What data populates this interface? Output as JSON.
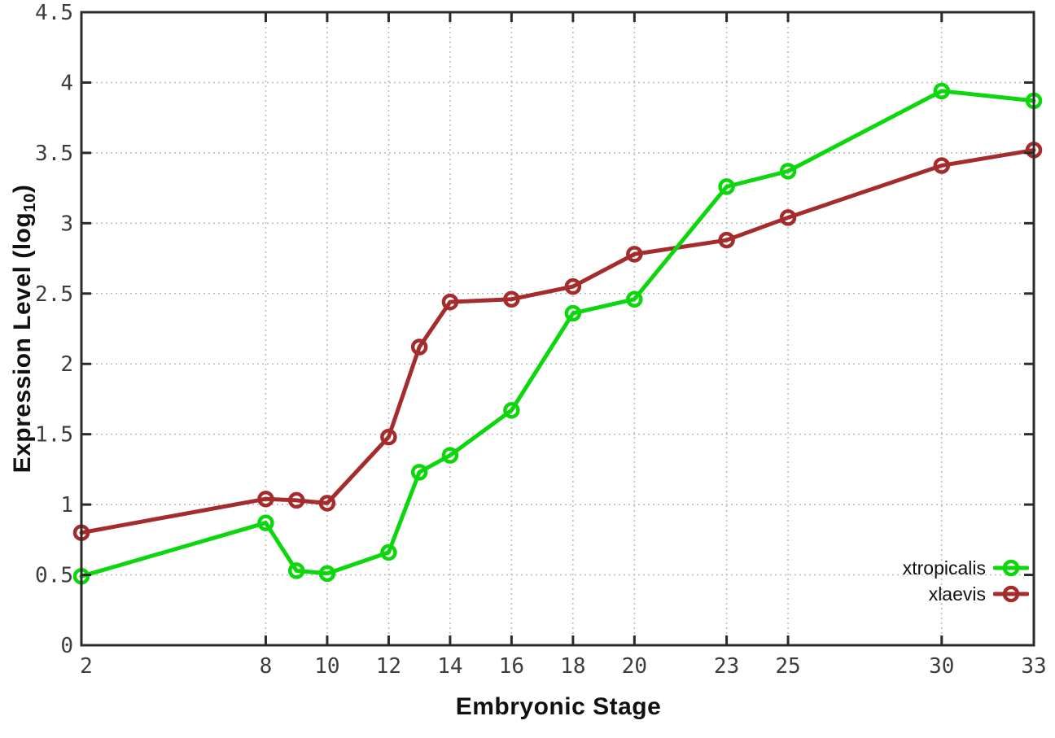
{
  "figure": {
    "background": "#ffffff"
  },
  "chart_data": {
    "type": "line",
    "title": "",
    "xlabel": "Embryonic Stage",
    "ylabel": "Expression Level (log10)",
    "ylabel_prefix": "Expression Level (log",
    "ylabel_sub": "10",
    "ylabel_suffix": ")",
    "x": [
      2,
      8,
      9,
      10,
      12,
      13,
      14,
      16,
      18,
      20,
      23,
      25,
      30,
      33
    ],
    "series": [
      {
        "name": "xtropicalis",
        "color": "#0cd60c",
        "values": [
          0.49,
          0.87,
          0.53,
          0.51,
          0.66,
          1.23,
          1.35,
          1.67,
          2.36,
          2.46,
          3.26,
          3.37,
          3.94,
          3.87
        ]
      },
      {
        "name": "xlaevis",
        "color": "#a52c2c",
        "values": [
          0.8,
          1.04,
          1.03,
          1.01,
          1.48,
          2.12,
          2.44,
          2.46,
          2.55,
          2.78,
          2.88,
          3.04,
          3.41,
          3.52
        ]
      }
    ],
    "xticks": [
      2,
      8,
      10,
      12,
      14,
      16,
      18,
      20,
      23,
      25,
      30,
      33
    ],
    "xtick_labels": [
      "2",
      "8",
      "10",
      "12",
      "14",
      "16",
      "18",
      "20",
      "23",
      "25",
      "30",
      "33"
    ],
    "yticks": [
      0,
      0.5,
      1,
      1.5,
      2,
      2.5,
      3,
      3.5,
      4,
      4.5
    ],
    "ytick_labels": [
      "0",
      "0.5",
      "1",
      "1.5",
      "2",
      "2.5",
      "3",
      "3.5",
      "4",
      "4.5"
    ],
    "xlim": [
      2,
      33
    ],
    "ylim": [
      0,
      4.5
    ],
    "grid": true,
    "legend_position": "inside-bottom-right",
    "marker": "open-circle"
  },
  "style": {
    "axis_color": "#2b2b2b",
    "grid_color": "#b8b8b8",
    "tick_label_color": "#3d3d3d",
    "label_color": "#111111",
    "plot_background": "#ffffff"
  }
}
